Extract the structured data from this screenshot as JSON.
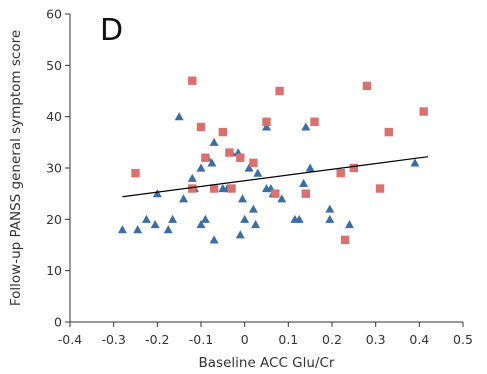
{
  "chart_data": {
    "type": "scatter",
    "panel_label": "D",
    "xlabel": "Baseline ACC Glu/Cr",
    "ylabel": "Follow-up PANSS general symptom score",
    "xlim": [
      -0.4,
      0.5
    ],
    "ylim": [
      0,
      60
    ],
    "x_ticks": [
      "-0.4",
      "-0.3",
      "-0.2",
      "-0.1",
      "0",
      "0.1",
      "0.2",
      "0.3",
      "0.4",
      "0.5"
    ],
    "y_ticks": [
      "0",
      "10",
      "20",
      "30",
      "40",
      "50",
      "60"
    ],
    "grid": false,
    "legend": "none",
    "series": [
      {
        "marker": "triangle",
        "color": "#3b6ea5",
        "points": [
          [
            -0.28,
            18
          ],
          [
            -0.245,
            18
          ],
          [
            -0.225,
            20
          ],
          [
            -0.205,
            19
          ],
          [
            -0.2,
            25
          ],
          [
            -0.175,
            18
          ],
          [
            -0.165,
            20
          ],
          [
            -0.15,
            40
          ],
          [
            -0.14,
            24
          ],
          [
            -0.12,
            28
          ],
          [
            -0.115,
            26
          ],
          [
            -0.1,
            30
          ],
          [
            -0.1,
            19
          ],
          [
            -0.09,
            20
          ],
          [
            -0.085,
            32
          ],
          [
            -0.075,
            31
          ],
          [
            -0.07,
            35
          ],
          [
            -0.07,
            16
          ],
          [
            -0.05,
            26
          ],
          [
            -0.04,
            26
          ],
          [
            -0.03,
            33
          ],
          [
            -0.015,
            33
          ],
          [
            -0.01,
            17
          ],
          [
            -0.005,
            24
          ],
          [
            0.0,
            20
          ],
          [
            0.01,
            30
          ],
          [
            0.02,
            22
          ],
          [
            0.025,
            19
          ],
          [
            0.03,
            29
          ],
          [
            0.05,
            38
          ],
          [
            0.05,
            26
          ],
          [
            0.06,
            26
          ],
          [
            0.065,
            25
          ],
          [
            0.085,
            24
          ],
          [
            0.115,
            20
          ],
          [
            0.125,
            20
          ],
          [
            0.135,
            27
          ],
          [
            0.14,
            38
          ],
          [
            0.15,
            30
          ],
          [
            0.195,
            20
          ],
          [
            0.195,
            22
          ],
          [
            0.24,
            19
          ],
          [
            0.39,
            31
          ]
        ]
      },
      {
        "marker": "square",
        "color": "#d9716e",
        "points": [
          [
            -0.25,
            29
          ],
          [
            -0.12,
            47
          ],
          [
            -0.12,
            26
          ],
          [
            -0.1,
            38
          ],
          [
            -0.09,
            32
          ],
          [
            -0.07,
            26
          ],
          [
            -0.05,
            37
          ],
          [
            -0.035,
            33
          ],
          [
            -0.03,
            26
          ],
          [
            -0.01,
            32
          ],
          [
            0.02,
            31
          ],
          [
            0.05,
            39
          ],
          [
            0.07,
            25
          ],
          [
            0.08,
            45
          ],
          [
            0.14,
            25
          ],
          [
            0.16,
            39
          ],
          [
            0.22,
            29
          ],
          [
            0.23,
            16
          ],
          [
            0.25,
            30
          ],
          [
            0.28,
            46
          ],
          [
            0.31,
            26
          ],
          [
            0.33,
            37
          ],
          [
            0.41,
            41
          ]
        ]
      }
    ],
    "trendline": {
      "color": "#000000",
      "x": [
        -0.28,
        0.42
      ],
      "y": [
        24.4,
        32.2
      ]
    }
  }
}
